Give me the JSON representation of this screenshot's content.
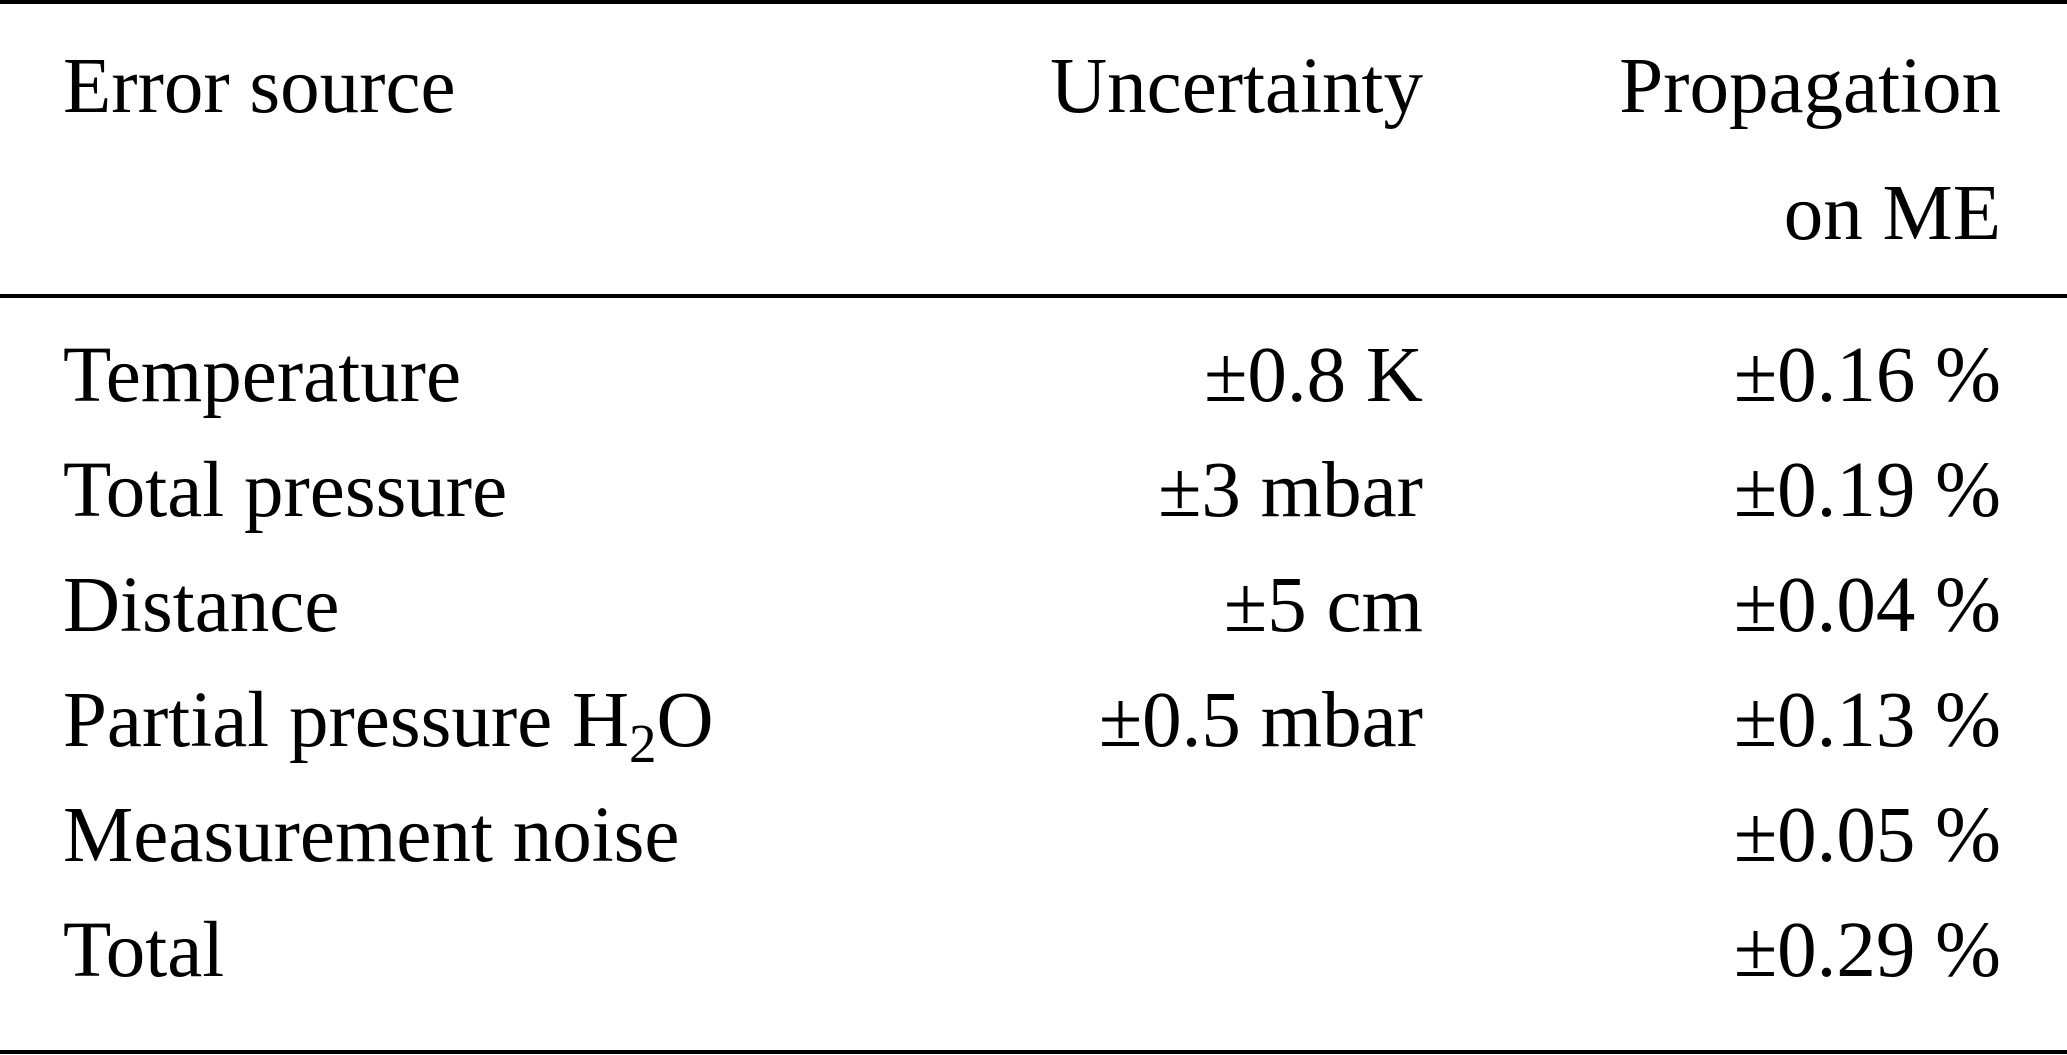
{
  "table": {
    "headers": {
      "error_source": "Error source",
      "uncertainty": "Uncertainty",
      "propagation_line1": "Propagation",
      "propagation_line2": "on ME"
    },
    "rows": [
      {
        "source": "Temperature",
        "uncertainty": "±0.8 K",
        "propagation": "±0.16 %"
      },
      {
        "source": "Total pressure",
        "uncertainty": "±3 mbar",
        "propagation": "±0.19 %"
      },
      {
        "source": "Distance",
        "uncertainty": "±5 cm",
        "propagation": "±0.04 %"
      },
      {
        "source_main": "Partial pressure H",
        "source_sub": "2",
        "source_tail": "O",
        "uncertainty": "±0.5 mbar",
        "propagation": "±0.13 %"
      },
      {
        "source": "Measurement noise",
        "uncertainty": "",
        "propagation": "±0.05 %"
      },
      {
        "source": "Total",
        "uncertainty": "",
        "propagation": "±0.29 %"
      }
    ]
  }
}
